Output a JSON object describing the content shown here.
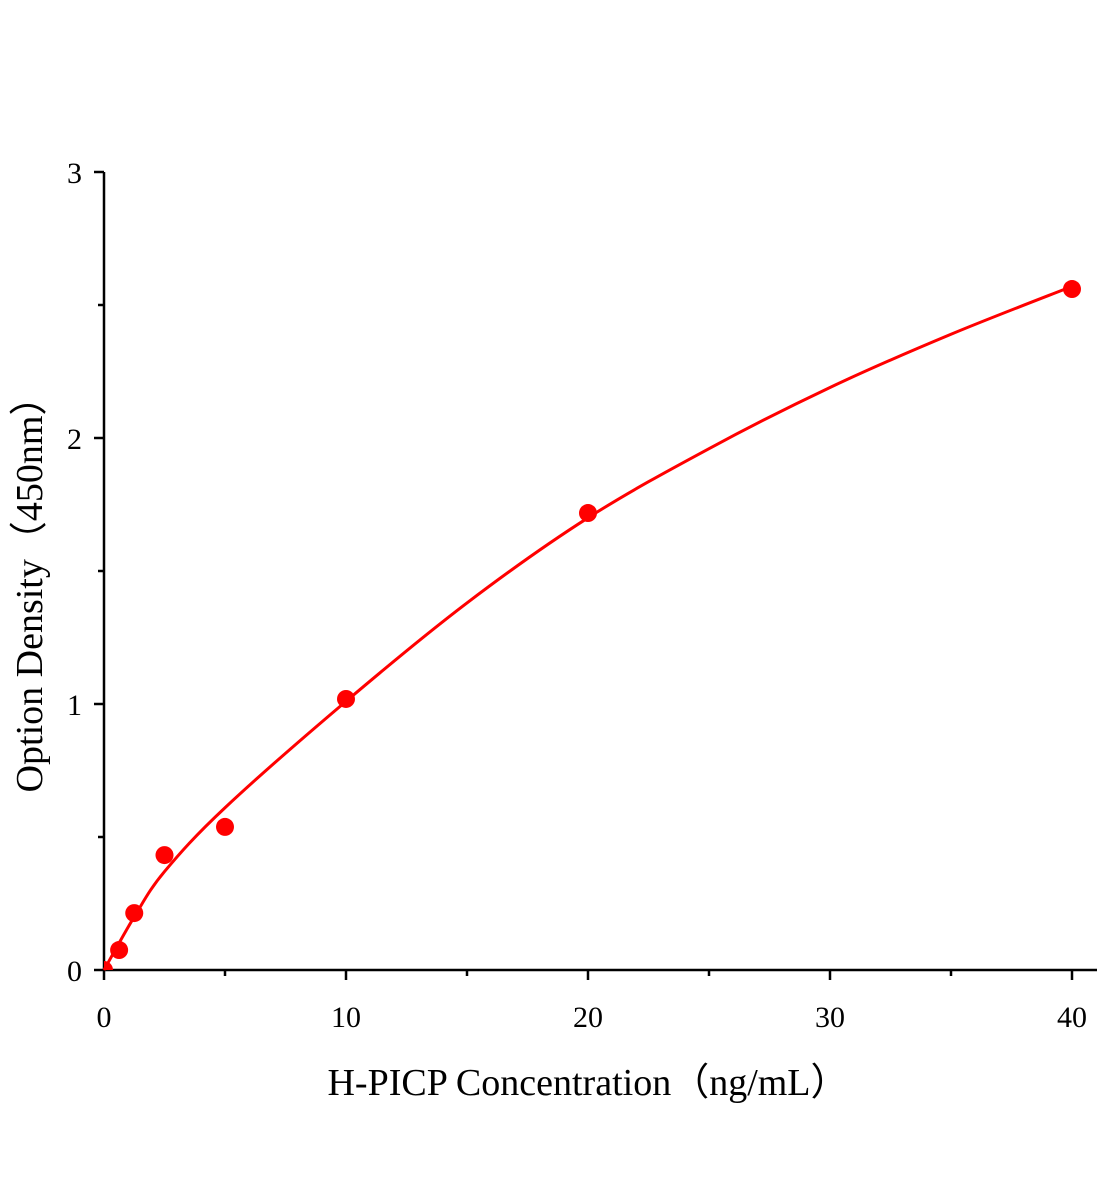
{
  "chart_data": {
    "type": "scatter",
    "title": "",
    "xlabel": "H-PICP Concentration（ng/mL）",
    "ylabel": "Option Density（450nm）",
    "xlim": [
      0,
      41
    ],
    "ylim": [
      0,
      3
    ],
    "xticks": [
      0,
      10,
      20,
      30,
      40
    ],
    "xminor": [
      5,
      15,
      25,
      35
    ],
    "yticks": [
      0,
      1,
      2,
      3
    ],
    "yminor": [
      0.5,
      1.5,
      2.5
    ],
    "grid": false,
    "color": "#ff0000",
    "points": {
      "x": [
        0,
        0.625,
        1.25,
        2.5,
        5,
        10,
        20,
        40
      ],
      "y": [
        0.0,
        0.075,
        0.214,
        0.432,
        0.538,
        1.019,
        1.718,
        2.56
      ]
    },
    "fit_curve": {
      "x": [
        0,
        1.25,
        2.5,
        5,
        10,
        15,
        20,
        25,
        30,
        35,
        40
      ],
      "y": [
        0,
        0.2,
        0.37,
        0.61,
        1.01,
        1.38,
        1.7,
        1.96,
        2.19,
        2.39,
        2.57
      ]
    }
  }
}
